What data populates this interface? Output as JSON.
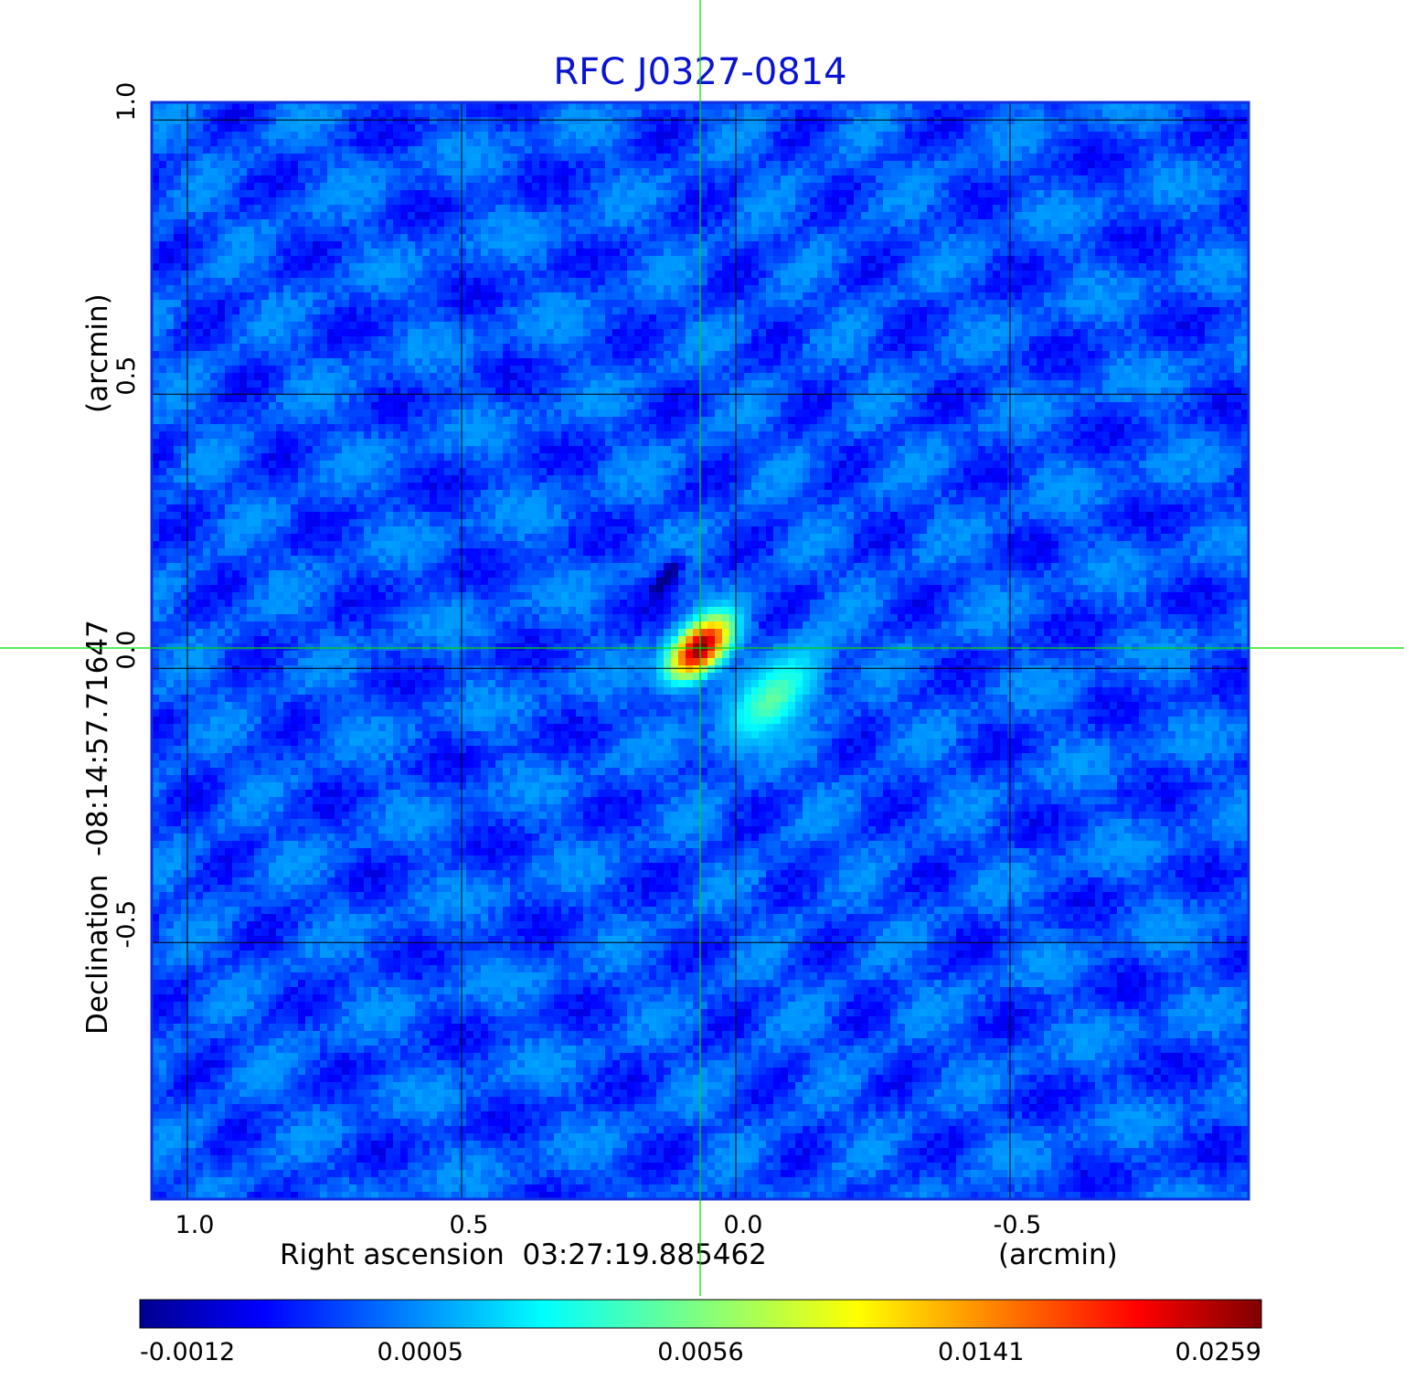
{
  "chart_data": {
    "type": "heatmap",
    "title": "RFC J0327-0814",
    "xlabel": "Right ascension  03:27:19.885462",
    "xlabel_unit": "(arcmin)",
    "ylabel": "Declination  -08:14:57.71647",
    "ylabel_unit": "(arcmin)",
    "x_ticks": [
      {
        "value": 1.0,
        "label": "1.0"
      },
      {
        "value": 0.5,
        "label": "0.5"
      },
      {
        "value": 0.0,
        "label": "0.0"
      },
      {
        "value": -0.5,
        "label": "-0.5"
      }
    ],
    "y_ticks": [
      {
        "value": 1.0,
        "label": "1.0"
      },
      {
        "value": 0.5,
        "label": "0.5"
      },
      {
        "value": 0.0,
        "label": "0.0"
      },
      {
        "value": -0.5,
        "label": "-0.5"
      }
    ],
    "xlim": [
      1.065,
      -0.935
    ],
    "ylim": [
      -0.968,
      1.032
    ],
    "grid": true,
    "crosshair": {
      "x": 0.065,
      "y": 0.037,
      "color": "#00dd00"
    },
    "sources": [
      {
        "x": 0.065,
        "y": 0.037,
        "peak": 0.0259,
        "sigma_major": 0.04,
        "sigma_minor": 0.022,
        "pa_deg": -45
      },
      {
        "x": -0.07,
        "y": -0.055,
        "peak": 0.0046,
        "sigma_major": 0.07,
        "sigma_minor": 0.03,
        "pa_deg": -45
      },
      {
        "x": 0.125,
        "y": 0.17,
        "peak": -0.0016,
        "sigma_major": 0.03,
        "sigma_minor": 0.012,
        "pa_deg": -55
      }
    ],
    "background_level": 0.0001,
    "colorbar": {
      "position": "bottom",
      "ticks": [
        "-0.0012",
        "0.0005",
        "0.0056",
        "0.0141",
        "0.0259"
      ],
      "min": -0.0012,
      "max": 0.0259,
      "colormap": "jet"
    }
  }
}
